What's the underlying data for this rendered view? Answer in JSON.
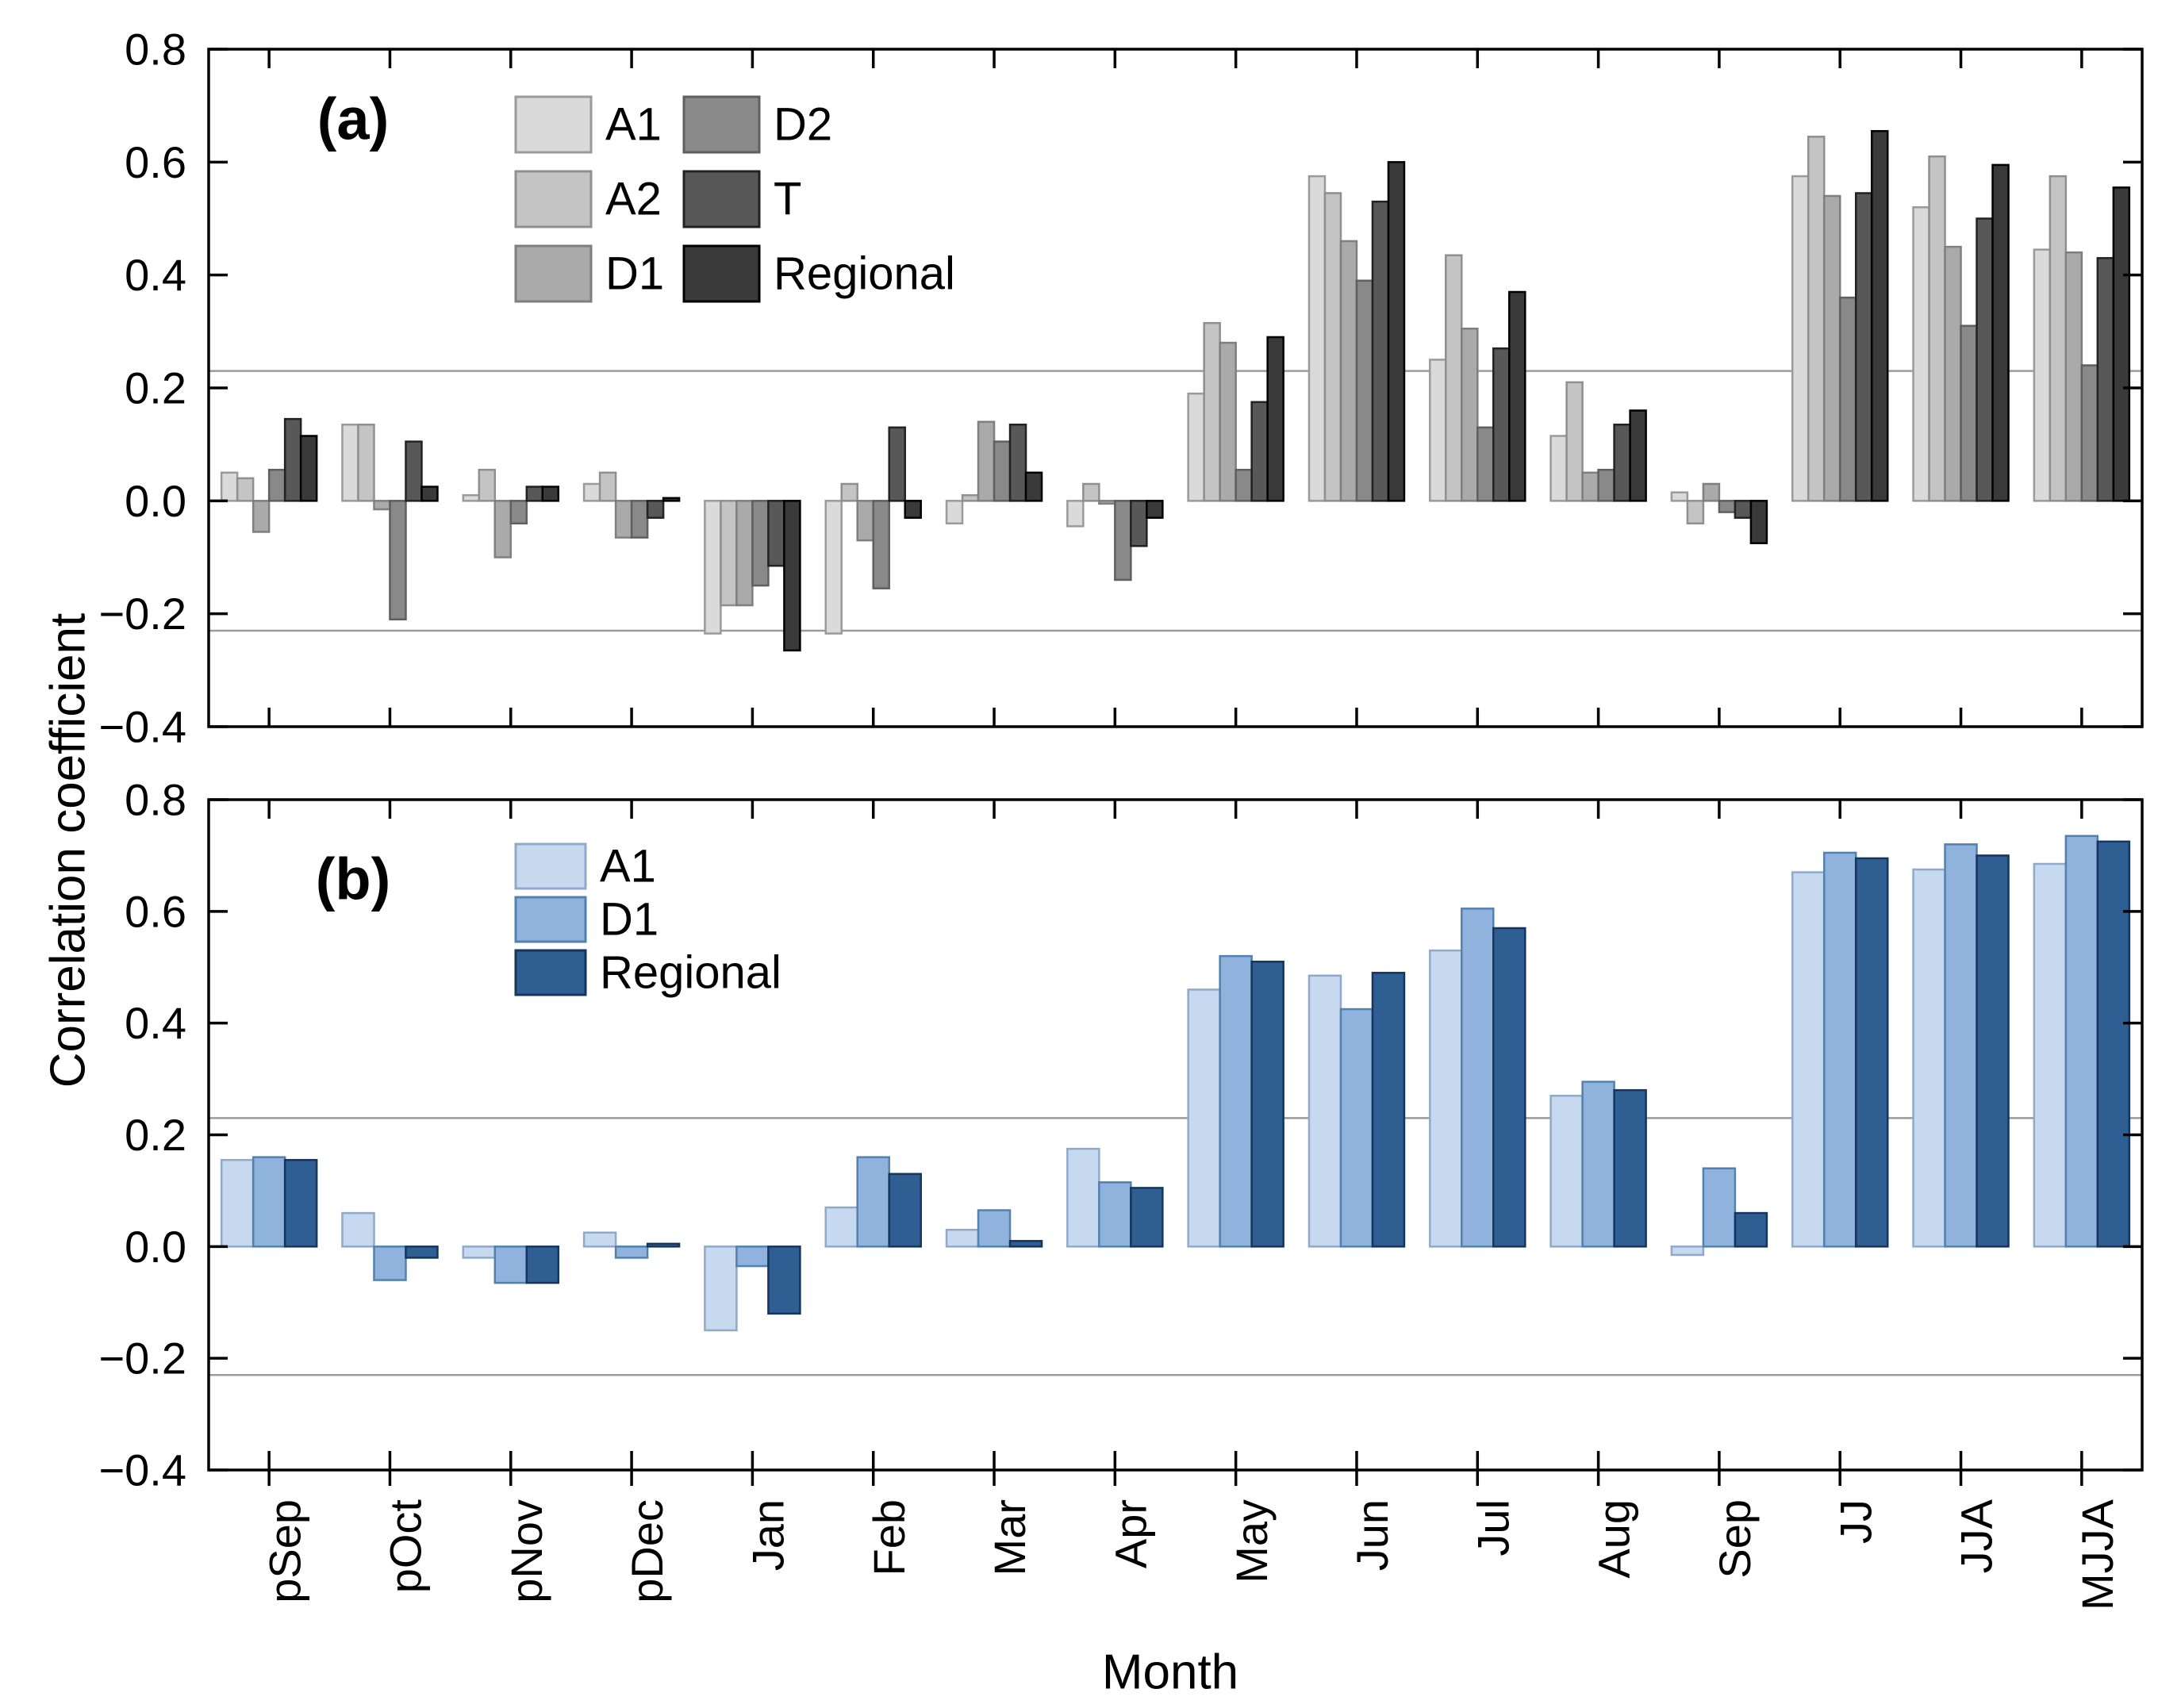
{
  "labels": {
    "ylabel": "Correlation coefficient",
    "xlabel": "Month"
  },
  "axes": {
    "ytick_labels": [
      "0.8",
      "0.6",
      "0.4",
      "0.2",
      "0.0",
      "−0.2",
      "−0.4"
    ],
    "ytick_values": [
      0.8,
      0.6,
      0.4,
      0.2,
      0.0,
      -0.2,
      -0.4
    ],
    "ylim": [
      -0.4,
      0.8
    ],
    "significance_level": 0.23,
    "significance_color": "#9b9b9b"
  },
  "chart_data": [
    {
      "type": "bar",
      "panel_tag": "(a)",
      "title": "",
      "xlabel": "Month",
      "ylabel": "Correlation coefficient",
      "ylim": [
        -0.4,
        0.8
      ],
      "grid": "off",
      "legend_position": "upper-left-inside",
      "significance_lines": [
        0.23,
        -0.23
      ],
      "categories": [
        "pSep",
        "pOct",
        "pNov",
        "pDec",
        "Jan",
        "Feb",
        "Mar",
        "Apr",
        "May",
        "Jun",
        "Jul",
        "Aug",
        "Sep",
        "JJ",
        "JJA",
        "MJJA"
      ],
      "series": [
        {
          "name": "A1",
          "fill": "#dadada",
          "edge": "#9a9a9a",
          "values": [
            0.05,
            0.135,
            0.01,
            0.03,
            -0.235,
            -0.235,
            -0.04,
            -0.045,
            0.19,
            0.575,
            0.25,
            0.115,
            0.015,
            0.575,
            0.52,
            0.445
          ]
        },
        {
          "name": "A2",
          "fill": "#c4c4c4",
          "edge": "#8f8f8f",
          "values": [
            0.04,
            0.135,
            0.055,
            0.05,
            -0.185,
            0.03,
            0.01,
            0.03,
            0.315,
            0.545,
            0.435,
            0.21,
            -0.04,
            0.645,
            0.61,
            0.575
          ]
        },
        {
          "name": "D1",
          "fill": "#aaaaaa",
          "edge": "#7f7f7f",
          "values": [
            -0.055,
            -0.015,
            -0.1,
            -0.065,
            -0.185,
            -0.07,
            0.14,
            -0.005,
            0.28,
            0.46,
            0.305,
            0.05,
            0.03,
            0.54,
            0.45,
            0.44
          ]
        },
        {
          "name": "D2",
          "fill": "#898989",
          "edge": "#5f5f5f",
          "values": [
            0.055,
            -0.21,
            -0.04,
            -0.065,
            -0.15,
            -0.155,
            0.105,
            -0.14,
            0.055,
            0.39,
            0.13,
            0.055,
            -0.02,
            0.36,
            0.31,
            0.24
          ]
        },
        {
          "name": "T",
          "fill": "#585858",
          "edge": "#222222",
          "values": [
            0.145,
            0.105,
            0.025,
            -0.03,
            -0.115,
            0.13,
            0.135,
            -0.08,
            0.175,
            0.53,
            0.27,
            0.135,
            -0.03,
            0.545,
            0.5,
            0.43
          ]
        },
        {
          "name": "Regional",
          "fill": "#3a3a3a",
          "edge": "#000000",
          "values": [
            0.115,
            0.025,
            0.025,
            0.005,
            -0.265,
            -0.03,
            0.05,
            -0.03,
            0.29,
            0.6,
            0.37,
            0.16,
            -0.075,
            0.655,
            0.595,
            0.555
          ]
        }
      ]
    },
    {
      "type": "bar",
      "panel_tag": "(b)",
      "title": "",
      "xlabel": "Month",
      "ylabel": "Correlation coefficient",
      "ylim": [
        -0.4,
        0.8
      ],
      "grid": "off",
      "legend_position": "upper-left-inside",
      "significance_lines": [
        0.23,
        -0.23
      ],
      "categories": [
        "pSep",
        "pOct",
        "pNov",
        "pDec",
        "Jan",
        "Feb",
        "Mar",
        "Apr",
        "May",
        "Jun",
        "Jul",
        "Aug",
        "Sep",
        "JJ",
        "JJA",
        "MJJA"
      ],
      "series": [
        {
          "name": "A1",
          "fill": "#c7d9ee",
          "edge": "#8fa9cb",
          "values": [
            0.155,
            0.06,
            -0.02,
            0.025,
            -0.15,
            0.07,
            0.03,
            0.175,
            0.46,
            0.485,
            0.53,
            0.27,
            -0.015,
            0.67,
            0.675,
            0.685
          ]
        },
        {
          "name": "D1",
          "fill": "#8fb3dd",
          "edge": "#5381ad",
          "values": [
            0.16,
            -0.06,
            -0.065,
            -0.02,
            -0.035,
            0.16,
            0.065,
            0.115,
            0.52,
            0.425,
            0.605,
            0.295,
            0.14,
            0.705,
            0.72,
            0.735
          ]
        },
        {
          "name": "Regional",
          "fill": "#2f5f92",
          "edge": "#14365e",
          "values": [
            0.155,
            -0.02,
            -0.065,
            0.005,
            -0.12,
            0.13,
            0.01,
            0.105,
            0.51,
            0.49,
            0.57,
            0.28,
            0.06,
            0.695,
            0.7,
            0.725
          ]
        }
      ]
    }
  ]
}
